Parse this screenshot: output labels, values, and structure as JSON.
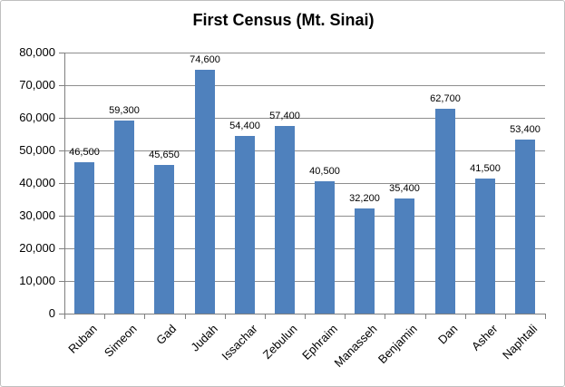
{
  "window": {
    "background": "#ffffff",
    "border_color": "#bfbfbf"
  },
  "chart_data": {
    "type": "bar",
    "title": "First Census (Mt. Sinai)",
    "categories": [
      "Ruban",
      "Simeon",
      "Gad",
      "Judah",
      "Issachar",
      "Zebulun",
      "Ephraim",
      "Manasseh",
      "Benjamin",
      "Dan",
      "Asher",
      "Naphtali"
    ],
    "values": [
      46500,
      59300,
      45650,
      74600,
      54400,
      57400,
      40500,
      32200,
      35400,
      62700,
      41500,
      53400
    ],
    "data_labels": [
      "46,500",
      "59,300",
      "45,650",
      "74,600",
      "54,400",
      "57,400",
      "40,500",
      "32,200",
      "35,400",
      "62,700",
      "41,500",
      "53,400"
    ],
    "y_tick_labels": [
      "0",
      "10,000",
      "20,000",
      "30,000",
      "40,000",
      "50,000",
      "60,000",
      "70,000",
      "80,000"
    ],
    "ylim": [
      0,
      80000
    ],
    "y_step": 10000,
    "xlabel": "",
    "ylabel": "",
    "grid": true,
    "legend": "none",
    "bar_color": "#4f81bd",
    "grid_color": "#8e8e8e",
    "axis_color": "#7f7f7f",
    "text_color": "#000000"
  }
}
